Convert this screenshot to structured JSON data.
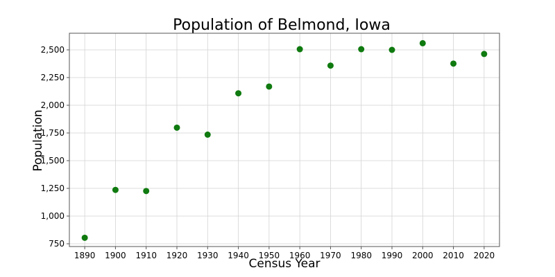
{
  "chart_data": {
    "type": "scatter",
    "title": "Population of Belmond, Iowa",
    "xlabel": "Census Year",
    "ylabel": "Population",
    "x": [
      1890,
      1900,
      1910,
      1920,
      1930,
      1940,
      1950,
      1960,
      1970,
      1980,
      1990,
      2000,
      2010,
      2020
    ],
    "y": [
      804,
      1236,
      1226,
      1798,
      1735,
      2108,
      2169,
      2506,
      2358,
      2506,
      2500,
      2560,
      2376,
      2463
    ],
    "xlim": [
      1885,
      2025
    ],
    "ylim": [
      725,
      2650
    ],
    "xticks": [
      1890,
      1900,
      1910,
      1920,
      1930,
      1940,
      1950,
      1960,
      1970,
      1980,
      1990,
      2000,
      2010,
      2020
    ],
    "xtick_labels": [
      "1890",
      "1900",
      "1910",
      "1920",
      "1930",
      "1940",
      "1950",
      "1960",
      "1970",
      "1980",
      "1990",
      "2000",
      "2010",
      "2020"
    ],
    "yticks": [
      750,
      1000,
      1250,
      1500,
      1750,
      2000,
      2250,
      2500
    ],
    "ytick_labels": [
      "750",
      "1,000",
      "1,250",
      "1,500",
      "1,750",
      "2,000",
      "2,250",
      "2,500"
    ],
    "grid": true,
    "marker_color": "#0f7a0f"
  }
}
